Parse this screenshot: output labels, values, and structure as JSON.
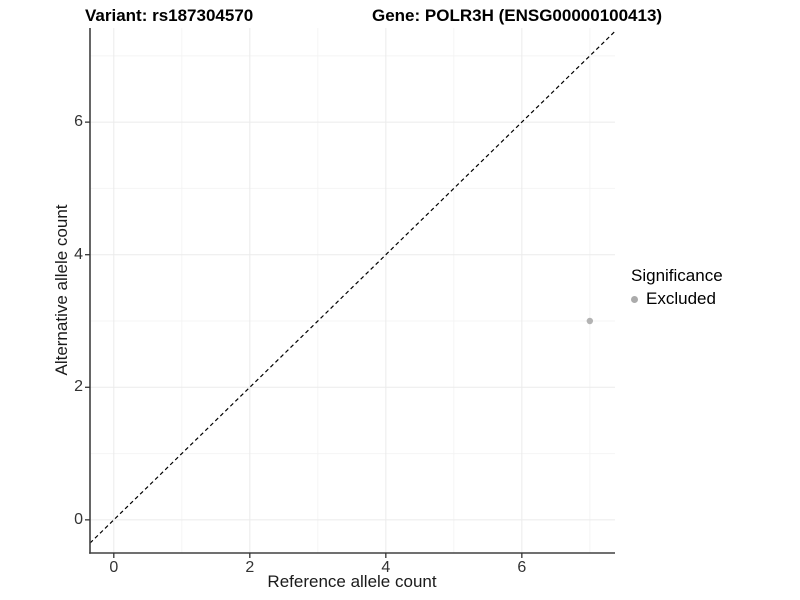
{
  "chart_data": {
    "type": "scatter",
    "title_variant": "Variant: rs187304570",
    "title_gene": "Gene: POLR3H (ENSG00000100413)",
    "xlabel": "Reference allele count",
    "ylabel": "Alternative allele count",
    "xlim": [
      -0.35,
      7.37
    ],
    "ylim": [
      -0.5,
      7.42
    ],
    "x_major_ticks": [
      0,
      2,
      4,
      6
    ],
    "y_major_ticks": [
      0,
      2,
      4,
      6
    ],
    "x_minor_gridlines": [
      1,
      3,
      5,
      7
    ],
    "y_minor_gridlines": [
      1,
      3,
      5,
      7
    ],
    "grid": "major and minor gridlines, light gray on white panel",
    "axes_drawn": [
      "left",
      "bottom"
    ],
    "identity_line": {
      "equation": "y = x",
      "style": "dashed",
      "color": "#000000"
    },
    "points": [
      {
        "x": 7,
        "y": 3,
        "series": "Excluded"
      }
    ],
    "legend": {
      "title": "Significance",
      "position": "right",
      "items": [
        {
          "label": "Excluded",
          "color": "#ababab",
          "marker": "circle"
        }
      ]
    },
    "colors": {
      "point": "#b3b3b3",
      "axis_line": "#404040",
      "tick_mark": "#333333",
      "grid_major": "#ebebeb",
      "grid_minor": "#f4f4f4",
      "background": "#ffffff"
    }
  }
}
